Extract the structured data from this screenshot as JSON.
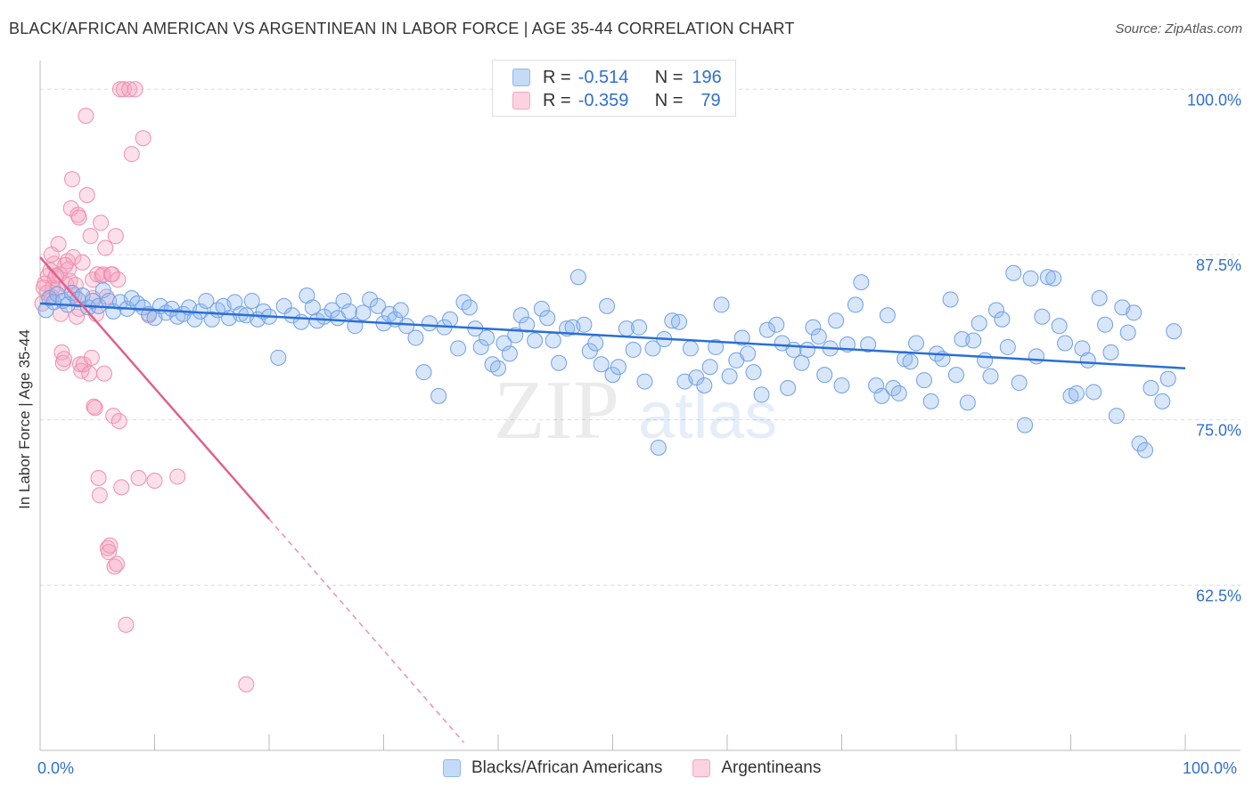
{
  "title": "BLACK/AFRICAN AMERICAN VS ARGENTINEAN IN LABOR FORCE | AGE 35-44 CORRELATION CHART",
  "source": "Source: ZipAtlas.com",
  "watermark": {
    "zip": "ZIP",
    "atlas": "atlas"
  },
  "legend": {
    "rows": [
      {
        "r_label": "R =",
        "r_value": "-0.514",
        "n_label": "N =",
        "n_value": "196",
        "color": "#8fb8ef"
      },
      {
        "r_label": "R =",
        "r_value": "-0.359",
        "n_label": "N =",
        "n_value": "79",
        "color": "#f4a6c0"
      }
    ]
  },
  "bottom_legend": [
    "Blacks/African Americans",
    "Argentineans"
  ],
  "chart_data": {
    "type": "scatter",
    "title": "BLACK/AFRICAN AMERICAN VS ARGENTINEAN IN LABOR FORCE | AGE 35-44 CORRELATION CHART",
    "xlabel": "",
    "ylabel": "In Labor Force | Age 35-44",
    "xlim": [
      0,
      100
    ],
    "ylim": [
      50,
      101.5
    ],
    "x_tick_labels": [
      "0.0%",
      "100.0%"
    ],
    "y_ticks": [
      62.5,
      75.0,
      87.5,
      100.0
    ],
    "y_tick_labels": [
      "62.5%",
      "75.0%",
      "87.5%",
      "100.0%"
    ],
    "grid": true,
    "legend_position": "top-center",
    "series": [
      {
        "name": "Blacks/African Americans",
        "color": "#6fa0e6",
        "trend": {
          "x": [
            0,
            100
          ],
          "y": [
            83.8,
            78.9
          ],
          "color": "#2a6fd6"
        },
        "points": [
          [
            0.5,
            83.3
          ],
          [
            0.8,
            84.2
          ],
          [
            1.2,
            83.9
          ],
          [
            1.5,
            84.5
          ],
          [
            2.0,
            84.0
          ],
          [
            2.4,
            83.7
          ],
          [
            2.8,
            84.6
          ],
          [
            3.3,
            84.1
          ],
          [
            3.7,
            84.4
          ],
          [
            4.2,
            83.5
          ],
          [
            4.6,
            84.0
          ],
          [
            5.1,
            83.6
          ],
          [
            5.5,
            84.8
          ],
          [
            6.0,
            84.0
          ],
          [
            6.4,
            83.2
          ],
          [
            7.0,
            83.9
          ],
          [
            7.6,
            83.4
          ],
          [
            8.0,
            84.2
          ],
          [
            8.5,
            83.8
          ],
          [
            9.0,
            83.5
          ],
          [
            9.5,
            83.0
          ],
          [
            10.0,
            82.7
          ],
          [
            10.5,
            83.6
          ],
          [
            11.0,
            83.1
          ],
          [
            11.5,
            83.4
          ],
          [
            12.0,
            82.8
          ],
          [
            12.5,
            83.0
          ],
          [
            13.0,
            83.5
          ],
          [
            13.5,
            82.6
          ],
          [
            14.0,
            83.2
          ],
          [
            14.5,
            84.0
          ],
          [
            15.0,
            82.6
          ],
          [
            15.5,
            83.3
          ],
          [
            16.0,
            83.6
          ],
          [
            16.5,
            82.7
          ],
          [
            17.0,
            83.9
          ],
          [
            17.5,
            83.0
          ],
          [
            18.0,
            82.9
          ],
          [
            18.5,
            84.0
          ],
          [
            19.0,
            82.6
          ],
          [
            19.5,
            83.2
          ],
          [
            20.0,
            82.8
          ],
          [
            20.8,
            79.7
          ],
          [
            21.3,
            83.6
          ],
          [
            22.0,
            82.9
          ],
          [
            22.8,
            82.4
          ],
          [
            23.3,
            84.4
          ],
          [
            23.8,
            83.5
          ],
          [
            24.2,
            82.5
          ],
          [
            24.8,
            82.8
          ],
          [
            25.5,
            83.3
          ],
          [
            26.0,
            82.7
          ],
          [
            26.5,
            84.0
          ],
          [
            27.0,
            83.2
          ],
          [
            27.5,
            82.1
          ],
          [
            28.2,
            83.1
          ],
          [
            28.8,
            84.1
          ],
          [
            29.5,
            83.6
          ],
          [
            30.0,
            82.3
          ],
          [
            30.5,
            83.0
          ],
          [
            31.0,
            82.6
          ],
          [
            31.5,
            83.3
          ],
          [
            32.0,
            82.1
          ],
          [
            32.8,
            81.2
          ],
          [
            33.5,
            78.6
          ],
          [
            34.0,
            82.3
          ],
          [
            34.8,
            76.8
          ],
          [
            35.3,
            82.0
          ],
          [
            35.8,
            82.6
          ],
          [
            36.5,
            80.4
          ],
          [
            37.0,
            83.9
          ],
          [
            37.5,
            83.5
          ],
          [
            38.0,
            81.9
          ],
          [
            38.5,
            80.5
          ],
          [
            39.0,
            81.2
          ],
          [
            39.5,
            79.2
          ],
          [
            40.0,
            78.9
          ],
          [
            40.5,
            80.8
          ],
          [
            41.0,
            80.0
          ],
          [
            41.5,
            81.4
          ],
          [
            42.0,
            82.9
          ],
          [
            42.5,
            82.2
          ],
          [
            43.2,
            81.0
          ],
          [
            43.8,
            83.4
          ],
          [
            44.3,
            82.7
          ],
          [
            44.8,
            81.0
          ],
          [
            45.3,
            79.3
          ],
          [
            46.0,
            81.9
          ],
          [
            46.5,
            82.0
          ],
          [
            47.0,
            85.8
          ],
          [
            47.5,
            82.2
          ],
          [
            48.0,
            80.2
          ],
          [
            48.5,
            80.8
          ],
          [
            49.0,
            79.2
          ],
          [
            49.5,
            83.6
          ],
          [
            50.0,
            78.4
          ],
          [
            50.5,
            79.0
          ],
          [
            51.2,
            81.9
          ],
          [
            51.8,
            80.3
          ],
          [
            52.3,
            82.0
          ],
          [
            52.8,
            77.9
          ],
          [
            53.5,
            80.4
          ],
          [
            54.0,
            72.9
          ],
          [
            54.5,
            81.1
          ],
          [
            55.2,
            82.5
          ],
          [
            55.8,
            82.4
          ],
          [
            56.3,
            77.9
          ],
          [
            56.8,
            80.4
          ],
          [
            57.3,
            78.2
          ],
          [
            58.0,
            77.6
          ],
          [
            58.5,
            79.0
          ],
          [
            59.0,
            80.5
          ],
          [
            59.5,
            83.7
          ],
          [
            60.2,
            78.3
          ],
          [
            60.8,
            79.5
          ],
          [
            61.3,
            81.2
          ],
          [
            61.8,
            80.0
          ],
          [
            62.3,
            78.6
          ],
          [
            63.0,
            76.9
          ],
          [
            63.5,
            81.8
          ],
          [
            64.3,
            82.2
          ],
          [
            64.8,
            80.8
          ],
          [
            65.3,
            77.4
          ],
          [
            65.8,
            80.3
          ],
          [
            66.5,
            79.3
          ],
          [
            67.0,
            80.3
          ],
          [
            67.5,
            82.0
          ],
          [
            68.0,
            81.3
          ],
          [
            68.5,
            78.4
          ],
          [
            69.0,
            80.4
          ],
          [
            69.5,
            82.5
          ],
          [
            70.0,
            77.6
          ],
          [
            70.5,
            80.7
          ],
          [
            71.2,
            83.7
          ],
          [
            71.7,
            85.4
          ],
          [
            72.3,
            80.7
          ],
          [
            73.0,
            77.6
          ],
          [
            73.5,
            76.8
          ],
          [
            74.0,
            82.9
          ],
          [
            74.5,
            77.4
          ],
          [
            75.0,
            77.0
          ],
          [
            75.5,
            79.6
          ],
          [
            76.0,
            79.4
          ],
          [
            76.5,
            80.8
          ],
          [
            77.2,
            78.0
          ],
          [
            77.8,
            76.4
          ],
          [
            78.3,
            80.0
          ],
          [
            78.8,
            79.6
          ],
          [
            79.5,
            84.1
          ],
          [
            80.0,
            78.4
          ],
          [
            80.5,
            81.1
          ],
          [
            81.0,
            76.3
          ],
          [
            81.5,
            81.0
          ],
          [
            82.0,
            82.3
          ],
          [
            82.5,
            79.5
          ],
          [
            83.0,
            78.3
          ],
          [
            83.5,
            83.3
          ],
          [
            84.0,
            82.6
          ],
          [
            84.5,
            80.5
          ],
          [
            85.0,
            86.1
          ],
          [
            85.5,
            77.8
          ],
          [
            86.0,
            74.6
          ],
          [
            86.5,
            85.7
          ],
          [
            87.0,
            79.8
          ],
          [
            87.5,
            82.8
          ],
          [
            88.0,
            85.8
          ],
          [
            88.5,
            85.7
          ],
          [
            89.0,
            82.1
          ],
          [
            89.5,
            80.8
          ],
          [
            90.0,
            76.8
          ],
          [
            90.5,
            77.0
          ],
          [
            91.0,
            80.4
          ],
          [
            91.5,
            79.5
          ],
          [
            92.0,
            77.1
          ],
          [
            92.5,
            84.2
          ],
          [
            93.0,
            82.2
          ],
          [
            93.5,
            80.1
          ],
          [
            94.0,
            75.3
          ],
          [
            94.5,
            83.5
          ],
          [
            95.0,
            81.6
          ],
          [
            95.5,
            83.1
          ],
          [
            96.0,
            73.2
          ],
          [
            96.5,
            72.7
          ],
          [
            97.0,
            77.4
          ],
          [
            98.0,
            76.4
          ],
          [
            98.5,
            78.1
          ],
          [
            99.0,
            81.7
          ]
        ]
      },
      {
        "name": "Argentineans",
        "color": "#f08db0",
        "trend": {
          "x": [
            0,
            20,
            37
          ],
          "y": [
            87.3,
            67.5,
            50.6
          ],
          "color": "#e0608e"
        },
        "points": [
          [
            0.2,
            83.8
          ],
          [
            0.4,
            85.3
          ],
          [
            0.6,
            84.6
          ],
          [
            0.7,
            85.9
          ],
          [
            0.9,
            86.3
          ],
          [
            1.0,
            84.3
          ],
          [
            1.1,
            85.0
          ],
          [
            1.2,
            86.8
          ],
          [
            1.3,
            85.7
          ],
          [
            1.5,
            84.9
          ],
          [
            1.6,
            88.3
          ],
          [
            1.7,
            86.0
          ],
          [
            1.8,
            83.0
          ],
          [
            1.9,
            80.1
          ],
          [
            2.0,
            79.3
          ],
          [
            2.1,
            79.6
          ],
          [
            2.3,
            85.2
          ],
          [
            2.4,
            87.0
          ],
          [
            2.5,
            86.4
          ],
          [
            2.6,
            85.5
          ],
          [
            2.7,
            91.0
          ],
          [
            2.8,
            93.2
          ],
          [
            2.9,
            87.3
          ],
          [
            3.0,
            84.4
          ],
          [
            3.1,
            85.2
          ],
          [
            3.2,
            82.8
          ],
          [
            3.3,
            90.5
          ],
          [
            3.4,
            90.3
          ],
          [
            3.5,
            79.2
          ],
          [
            3.6,
            78.7
          ],
          [
            3.7,
            86.9
          ],
          [
            3.8,
            79.2
          ],
          [
            4.0,
            98.0
          ],
          [
            4.1,
            92.0
          ],
          [
            4.3,
            78.5
          ],
          [
            4.4,
            88.9
          ],
          [
            4.5,
            79.7
          ],
          [
            4.6,
            85.6
          ],
          [
            4.7,
            76.0
          ],
          [
            4.8,
            75.9
          ],
          [
            4.9,
            83.0
          ],
          [
            5.0,
            86.0
          ],
          [
            5.1,
            70.6
          ],
          [
            5.2,
            69.3
          ],
          [
            5.3,
            89.9
          ],
          [
            5.4,
            85.9
          ],
          [
            5.5,
            86.0
          ],
          [
            5.6,
            78.5
          ],
          [
            5.7,
            88.0
          ],
          [
            5.8,
            84.3
          ],
          [
            5.9,
            65.3
          ],
          [
            6.0,
            65.0
          ],
          [
            6.1,
            65.5
          ],
          [
            6.2,
            86.0
          ],
          [
            6.3,
            86.0
          ],
          [
            6.4,
            75.3
          ],
          [
            6.5,
            63.9
          ],
          [
            6.6,
            88.9
          ],
          [
            6.7,
            64.1
          ],
          [
            6.8,
            85.6
          ],
          [
            6.9,
            74.9
          ],
          [
            7.0,
            100.0
          ],
          [
            7.1,
            69.9
          ],
          [
            7.3,
            100.0
          ],
          [
            7.5,
            59.5
          ],
          [
            7.8,
            100.0
          ],
          [
            8.0,
            95.1
          ],
          [
            8.3,
            100.0
          ],
          [
            8.6,
            70.6
          ],
          [
            9.0,
            96.3
          ],
          [
            9.5,
            82.9
          ],
          [
            10.0,
            70.4
          ],
          [
            12.0,
            70.7
          ],
          [
            18.0,
            55.0
          ],
          [
            1.4,
            85.9
          ],
          [
            0.3,
            85.0
          ],
          [
            2.2,
            86.7
          ],
          [
            1.0,
            87.5
          ],
          [
            3.4,
            83.4
          ],
          [
            4.6,
            84.2
          ]
        ]
      }
    ]
  }
}
